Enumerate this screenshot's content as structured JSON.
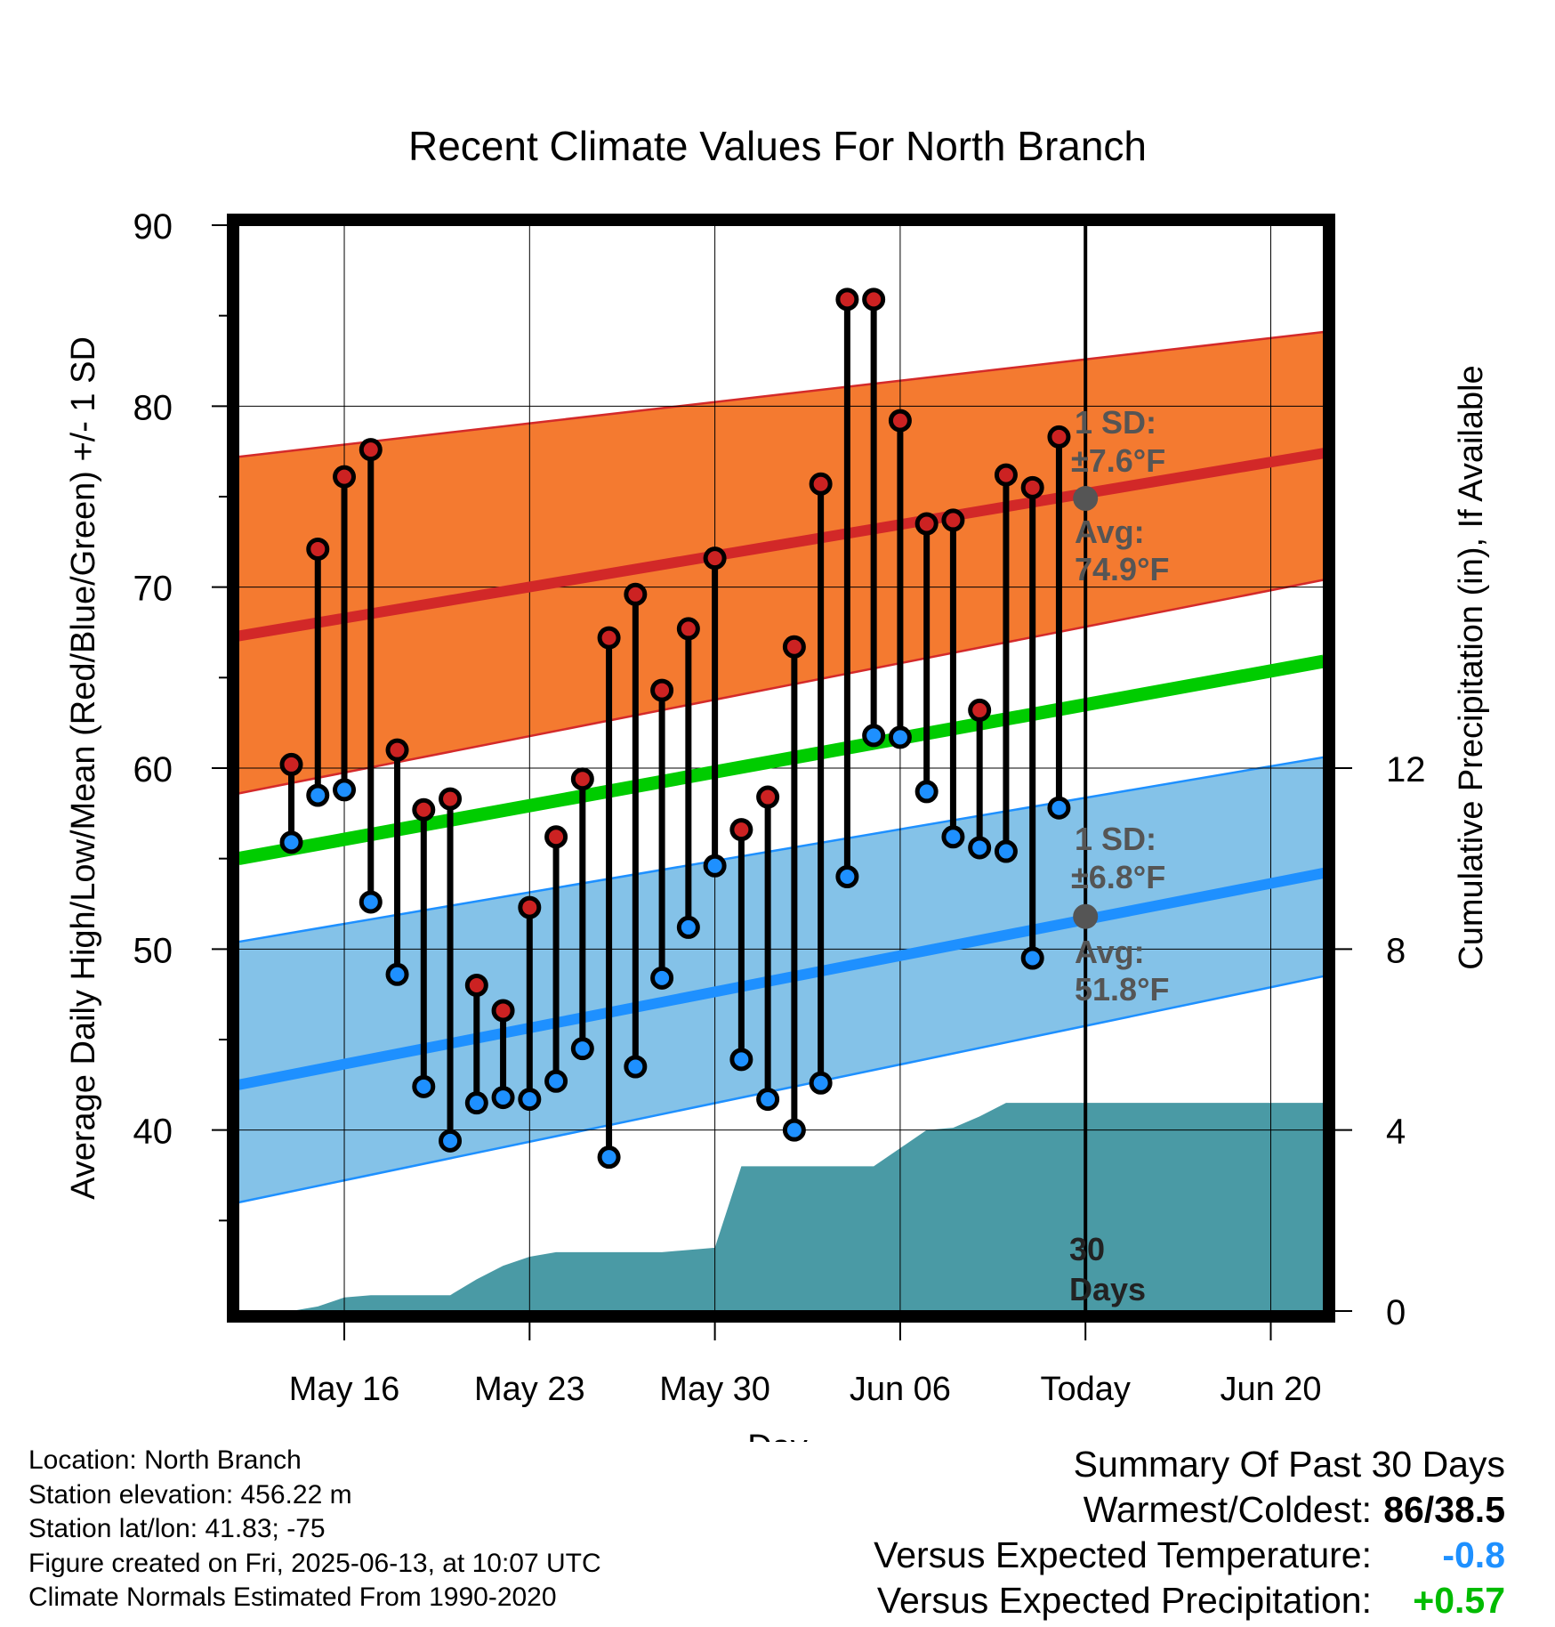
{
  "chart_data": {
    "type": "line",
    "title": "Recent Climate Values For North Branch",
    "xlabel": "Day",
    "ylabel": "Average Daily High/Low/Mean (Red/Blue/Green) +/- 1 SD",
    "y2label": "Cumulative Precipitation (in), If Available",
    "ylim": [
      30,
      90
    ],
    "y2lim": [
      0,
      24
    ],
    "y_ticks": [
      "40",
      "50",
      "60",
      "70",
      "80",
      "90"
    ],
    "y2_ticks": [
      "0",
      "4",
      "8",
      "12"
    ],
    "x_tick_labels": [
      "May 16",
      "May 23",
      "May 30",
      "Jun 06",
      "Today",
      "Jun 20"
    ],
    "x_range": [
      "2025-05-12",
      "2025-06-22"
    ],
    "x_tick_dates": [
      "2025-05-16",
      "2025-05-23",
      "2025-05-30",
      "2025-06-06",
      "2025-06-13",
      "2025-06-20"
    ],
    "dates": [
      "2025-05-14",
      "2025-05-15",
      "2025-05-16",
      "2025-05-17",
      "2025-05-18",
      "2025-05-19",
      "2025-05-20",
      "2025-05-21",
      "2025-05-22",
      "2025-05-23",
      "2025-05-24",
      "2025-05-25",
      "2025-05-26",
      "2025-05-27",
      "2025-05-28",
      "2025-05-29",
      "2025-05-30",
      "2025-05-31",
      "2025-06-01",
      "2025-06-02",
      "2025-06-03",
      "2025-06-04",
      "2025-06-05",
      "2025-06-06",
      "2025-06-07",
      "2025-06-08",
      "2025-06-09",
      "2025-06-10",
      "2025-06-11",
      "2025-06-12"
    ],
    "series": [
      {
        "name": "High",
        "color": "#cc2222",
        "values": [
          60.2,
          72.1,
          76.1,
          77.6,
          61.0,
          57.7,
          58.3,
          48.0,
          46.6,
          52.3,
          56.2,
          59.4,
          67.2,
          69.6,
          64.3,
          67.7,
          71.6,
          56.6,
          58.4,
          66.7,
          75.7,
          85.9,
          85.9,
          79.2,
          73.5,
          73.7,
          63.2,
          76.2,
          75.5,
          78.3
        ]
      },
      {
        "name": "Low",
        "color": "#1e90ff",
        "values": [
          55.9,
          58.5,
          58.8,
          52.6,
          48.6,
          42.4,
          39.4,
          41.5,
          41.8,
          41.7,
          42.7,
          44.5,
          38.5,
          43.5,
          48.4,
          51.2,
          54.6,
          43.9,
          41.7,
          40.0,
          42.6,
          54.0,
          61.8,
          61.7,
          58.7,
          56.2,
          55.6,
          55.4,
          49.5,
          57.8
        ]
      }
    ],
    "normals": {
      "high_mean": [
        "2025-05-12",
        67.3,
        "2025-06-22",
        77.4
      ],
      "high_band": {
        "lower": [
          "2025-05-12",
          58.6,
          "2025-06-22",
          70.4
        ],
        "upper": [
          "2025-05-12",
          77.2,
          "2025-06-22",
          84.1
        ]
      },
      "mean_line": [
        "2025-05-12",
        55.0,
        "2025-06-22",
        65.9
      ],
      "low_mean": [
        "2025-05-12",
        42.5,
        "2025-06-22",
        54.2
      ],
      "low_band": {
        "lower": [
          "2025-05-12",
          36.0,
          "2025-06-22",
          48.5
        ],
        "upper": [
          "2025-05-12",
          50.4,
          "2025-06-22",
          60.6
        ]
      }
    },
    "precipitation": {
      "color": "#4a9aa5",
      "dates": [
        "2025-05-12",
        "2025-05-13",
        "2025-05-14",
        "2025-05-15",
        "2025-05-16",
        "2025-05-17",
        "2025-05-18",
        "2025-05-19",
        "2025-05-20",
        "2025-05-21",
        "2025-05-22",
        "2025-05-23",
        "2025-05-24",
        "2025-05-25",
        "2025-05-26",
        "2025-05-27",
        "2025-05-28",
        "2025-05-29",
        "2025-05-30",
        "2025-05-31",
        "2025-06-01",
        "2025-06-02",
        "2025-06-03",
        "2025-06-04",
        "2025-06-05",
        "2025-06-06",
        "2025-06-07",
        "2025-06-08",
        "2025-06-09",
        "2025-06-10",
        "2025-06-11",
        "2025-06-12",
        "2025-06-13",
        "2025-06-22"
      ],
      "values": [
        0,
        0,
        0,
        0.1,
        0.3,
        0.35,
        0.35,
        0.35,
        0.35,
        0.7,
        1.0,
        1.2,
        1.3,
        1.3,
        1.3,
        1.3,
        1.3,
        1.35,
        1.4,
        3.2,
        3.2,
        3.2,
        3.2,
        3.2,
        3.2,
        3.6,
        4.0,
        4.05,
        4.3,
        4.6,
        4.6,
        4.6,
        4.6,
        4.6
      ]
    },
    "today_marker": "2025-06-13",
    "high_annotation": {
      "sd_label": "1 SD:",
      "sd_value": "±7.6°F",
      "avg_label": "Avg:",
      "avg_value": "74.9°F",
      "avg_y": 74.9
    },
    "low_annotation": {
      "sd_label": "1 SD:",
      "sd_value": "±6.8°F",
      "avg_label": "Avg:",
      "avg_value": "51.8°F",
      "avg_y": 51.8
    },
    "window_label": [
      "30",
      "Days"
    ],
    "grid": true,
    "colors": {
      "high_band": "#f47a30",
      "low_band": "#84c2e8",
      "mean": "#00cc00",
      "avg_marker": "#555555"
    }
  },
  "info": {
    "location": "Location: North Branch",
    "elevation": "Station elevation: 456.22 m",
    "latlon": "Station lat/lon: 41.83; -75",
    "created": "Figure created on Fri, 2025-06-13, at 10:07 UTC",
    "normals": "Climate Normals Estimated From 1990-2020"
  },
  "summary": {
    "heading": "Summary Of Past 30 Days",
    "warmest_label": "Warmest/Coldest:",
    "warmest_value": "86/38.5",
    "temp_label": "Versus Expected Temperature:",
    "temp_value": "-0.8",
    "temp_color": "#1e90ff",
    "precip_label": "Versus Expected Precipitation:",
    "precip_value": "+0.57",
    "precip_color": "#00bb00"
  }
}
